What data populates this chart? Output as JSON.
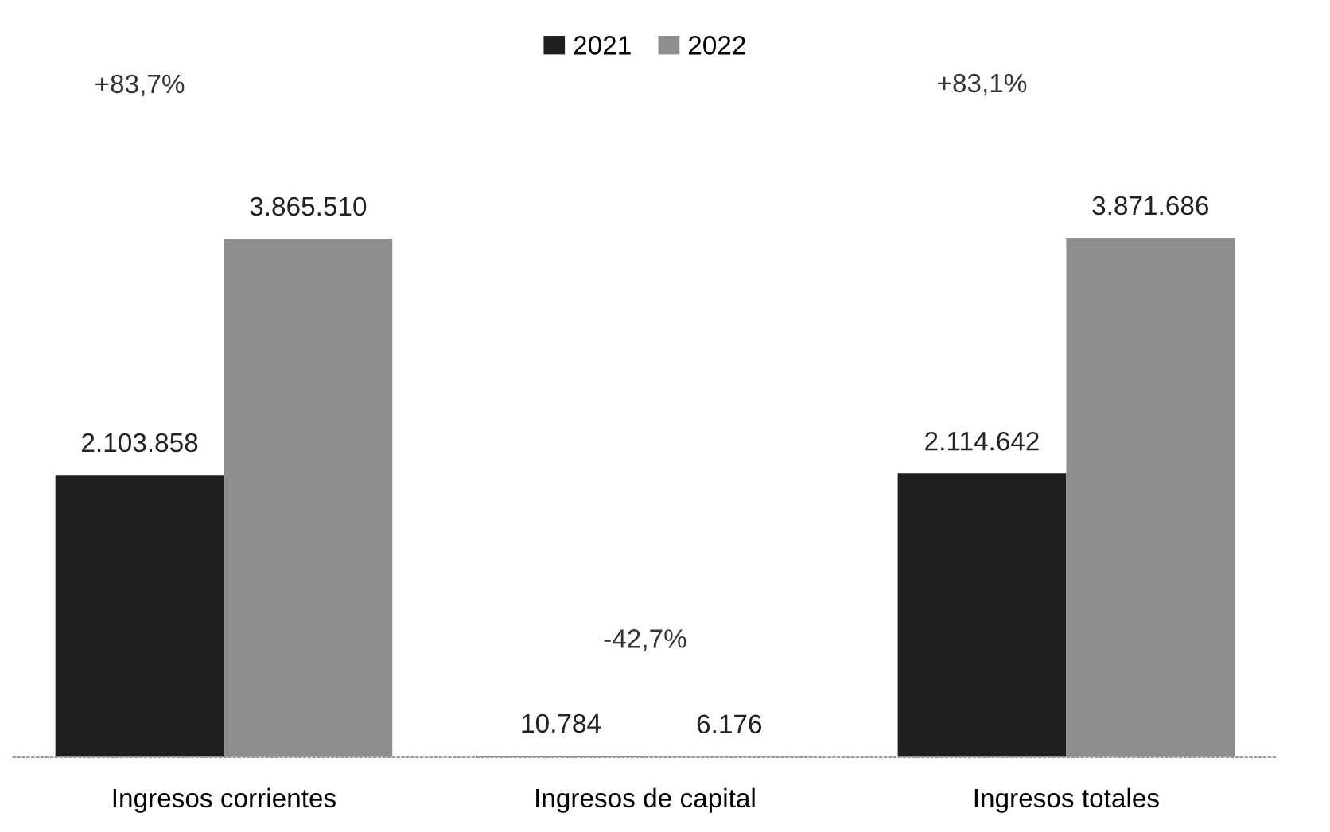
{
  "chart_data": {
    "type": "bar",
    "categories": [
      "Ingresos corrientes",
      "Ingresos de capital",
      "Ingresos totales"
    ],
    "series": [
      {
        "name": "2021",
        "color": "#1e1e1e",
        "values": [
          2103858,
          10784,
          2114642
        ],
        "value_labels": [
          "2.103.858",
          "10.784",
          "2.114.642"
        ]
      },
      {
        "name": "2022",
        "color": "#8e8e8e",
        "values": [
          3865510,
          6176,
          3871686
        ],
        "value_labels": [
          "3.865.510",
          "6.176",
          "3.871.686"
        ]
      }
    ],
    "annotations": [
      "+83,7%",
      "-42,7%",
      "+83,1%"
    ],
    "legend": "top",
    "grid": false
  }
}
